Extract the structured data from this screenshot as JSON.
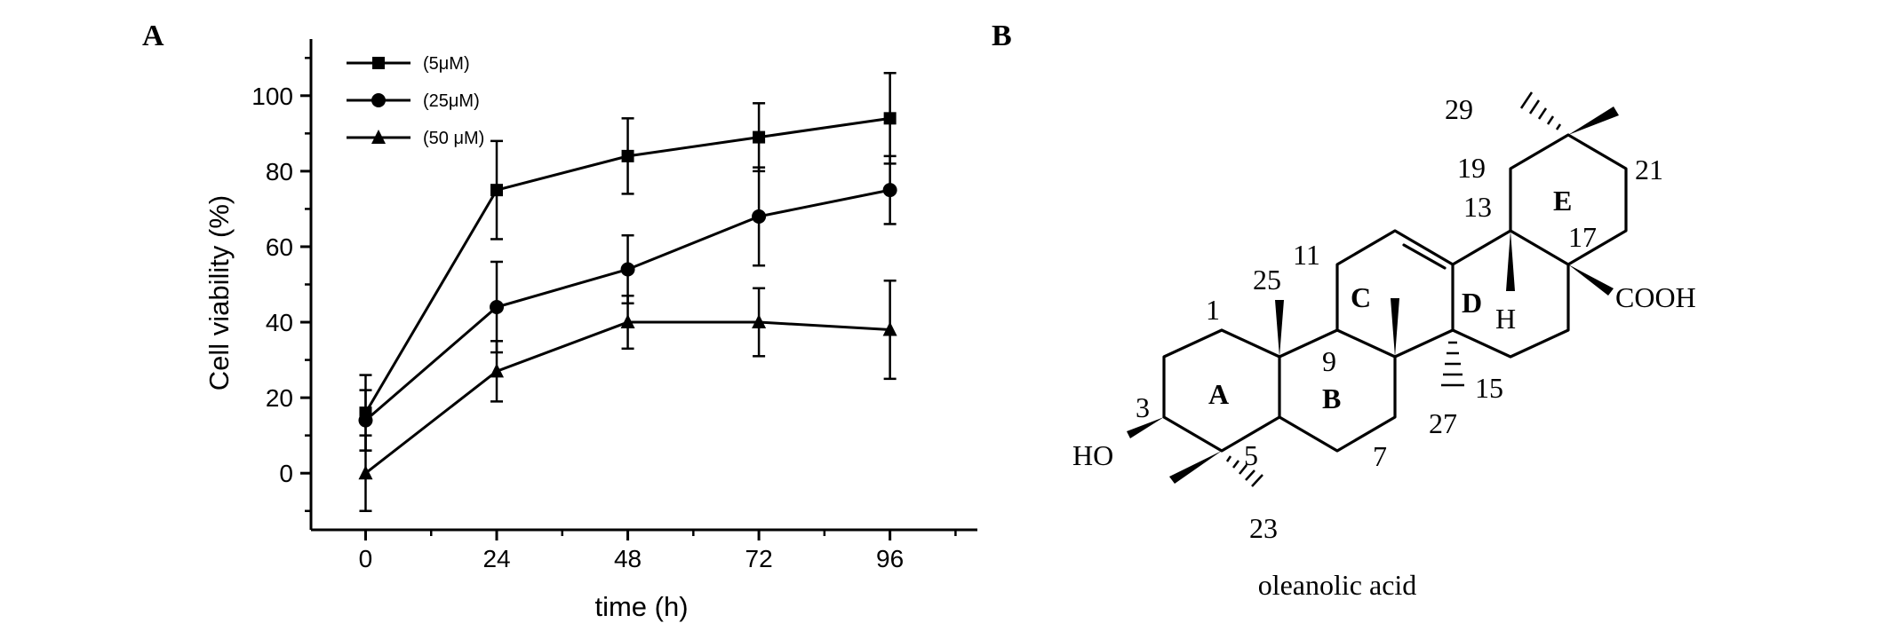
{
  "panels": {
    "a_letter": "A",
    "b_letter": "B"
  },
  "chart_data": {
    "type": "line",
    "x": [
      0,
      24,
      48,
      72,
      96
    ],
    "xticks": [
      "0",
      "24",
      "48",
      "72",
      "96"
    ],
    "yticks": [
      "0",
      "20",
      "40",
      "60",
      "80",
      "100"
    ],
    "xlim": [
      -10,
      112
    ],
    "ylim": [
      -15,
      115
    ],
    "xlabel": "time (h)",
    "ylabel": "Cell viability (%)",
    "legend_position": "top-left",
    "series": [
      {
        "name": "(5μM)",
        "marker": "square",
        "values": [
          16,
          75,
          84,
          89,
          94
        ],
        "errors": [
          10,
          13,
          10,
          9,
          12
        ]
      },
      {
        "name": "(25μM)",
        "marker": "circle",
        "values": [
          14,
          44,
          54,
          68,
          75
        ],
        "errors": [
          8,
          12,
          9,
          13,
          9
        ]
      },
      {
        "name": "(50 μM)",
        "marker": "triangle",
        "values": [
          0,
          27,
          40,
          40,
          38
        ],
        "errors": [
          10,
          8,
          7,
          9,
          13
        ]
      }
    ]
  },
  "structure": {
    "name": "oleanolic acid",
    "rings": [
      "A",
      "B",
      "C",
      "D",
      "E"
    ],
    "carbon_numbers": [
      "1",
      "3",
      "5",
      "7",
      "9",
      "11",
      "13",
      "15",
      "17",
      "19",
      "21",
      "23",
      "25",
      "27",
      "29"
    ],
    "groups": {
      "hydroxyl": "HO",
      "carboxyl": "COOH",
      "hydrogen": "H"
    }
  }
}
